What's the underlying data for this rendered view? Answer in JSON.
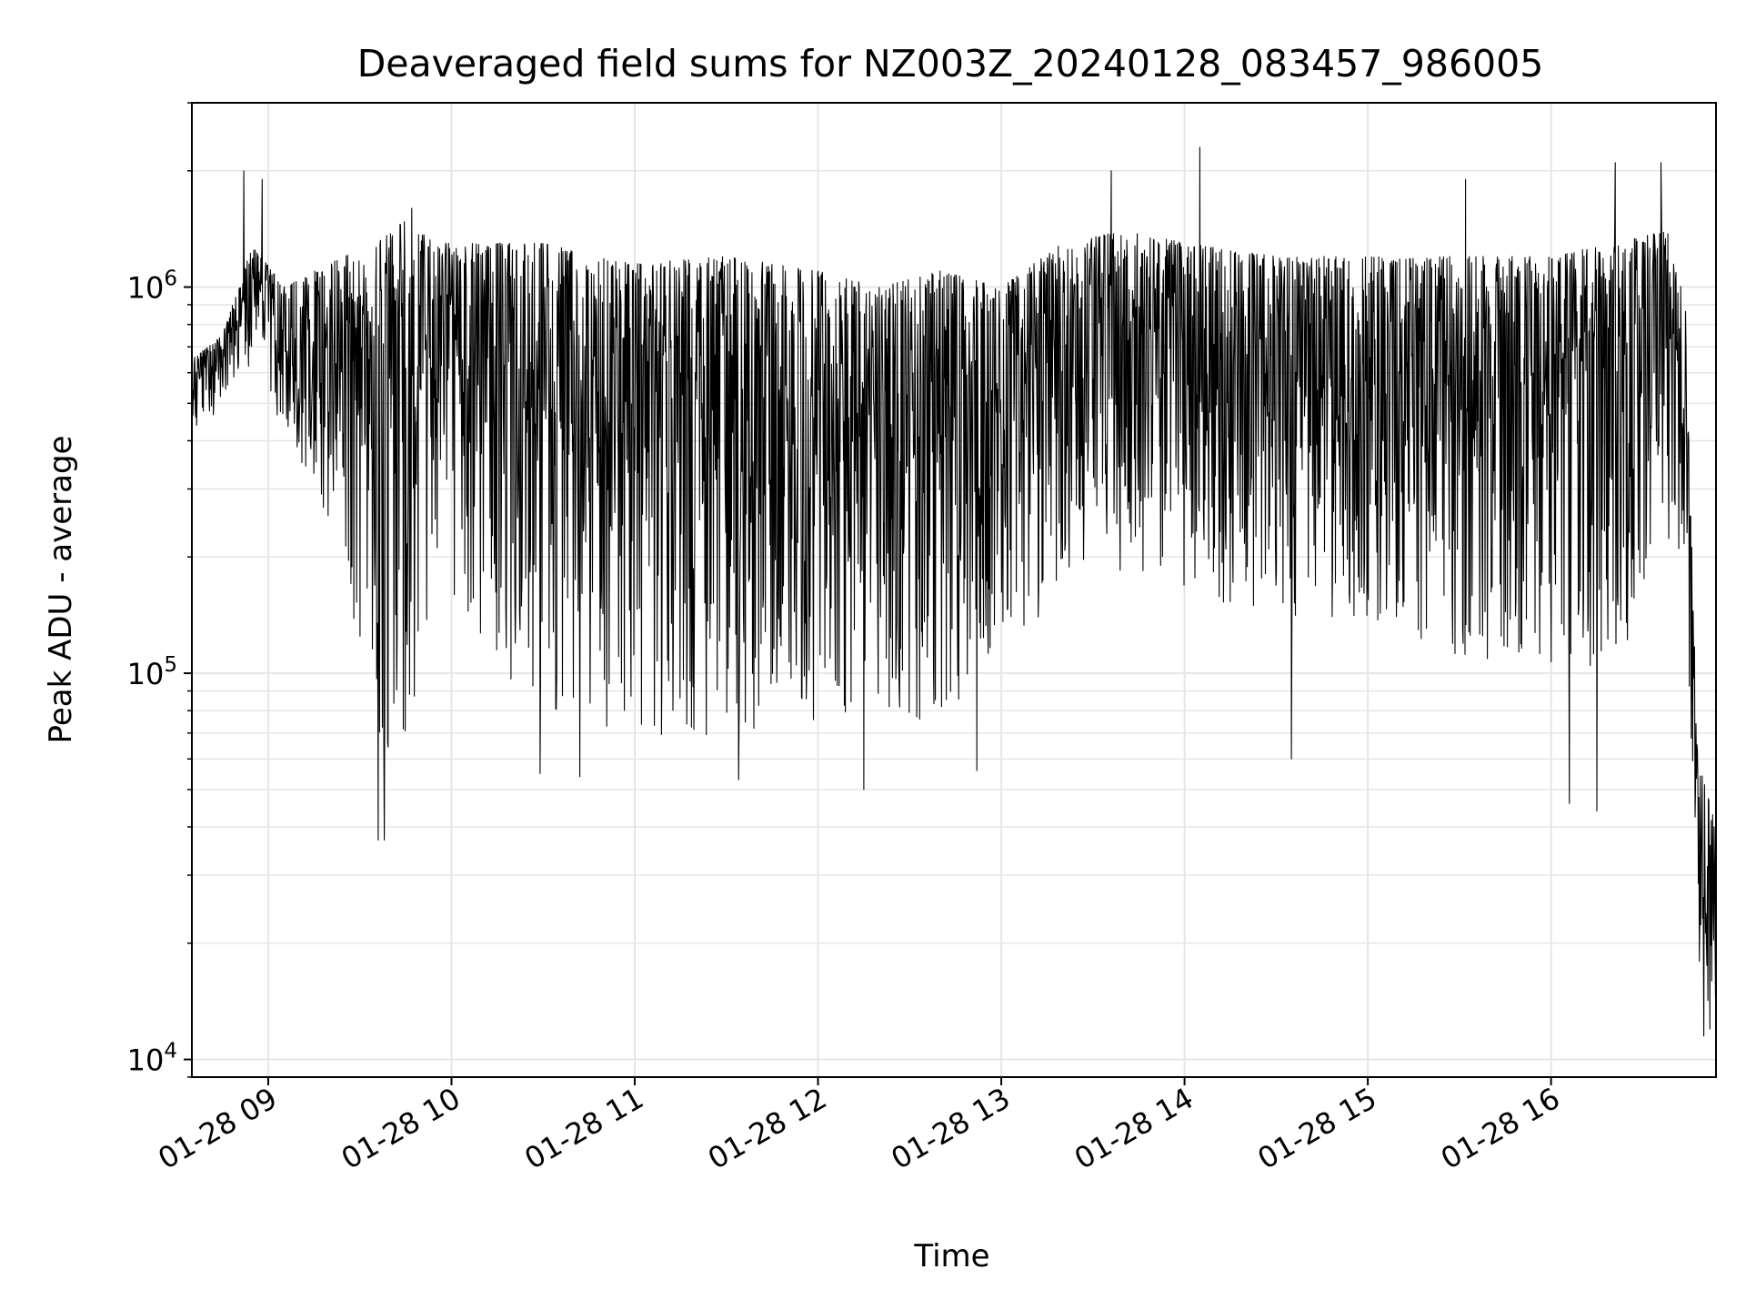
{
  "chart_data": {
    "type": "line",
    "title": "Deaveraged field sums for NZ003Z_20240128_083457_986005",
    "xlabel": "Time",
    "ylabel": "Peak ADU - average",
    "yscale": "log",
    "ylim": [
      9000,
      3000000
    ],
    "xlim": [
      "2024-01-28 08:35",
      "2024-01-28 16:54"
    ],
    "grid": true,
    "line_color": "#000000",
    "x_ticks": [
      {
        "t": "2024-01-28 09:00",
        "label": "01-28 09"
      },
      {
        "t": "2024-01-28 10:00",
        "label": "01-28 10"
      },
      {
        "t": "2024-01-28 11:00",
        "label": "01-28 11"
      },
      {
        "t": "2024-01-28 12:00",
        "label": "01-28 12"
      },
      {
        "t": "2024-01-28 13:00",
        "label": "01-28 13"
      },
      {
        "t": "2024-01-28 14:00",
        "label": "01-28 14"
      },
      {
        "t": "2024-01-28 15:00",
        "label": "01-28 15"
      },
      {
        "t": "2024-01-28 16:00",
        "label": "01-28 16"
      }
    ],
    "y_ticks": [
      {
        "value": 10000,
        "base": "10",
        "exp": "4"
      },
      {
        "value": 100000,
        "base": "10",
        "exp": "5"
      },
      {
        "value": 1000000,
        "base": "10",
        "exp": "6"
      }
    ],
    "envelope": {
      "x": [
        "2024-01-28 08:35",
        "2024-01-28 08:45",
        "2024-01-28 08:55",
        "2024-01-28 09:05",
        "2024-01-28 09:15",
        "2024-01-28 09:25",
        "2024-01-28 09:35",
        "2024-01-28 09:45",
        "2024-01-28 09:55",
        "2024-01-28 10:15",
        "2024-01-28 10:30",
        "2024-01-28 11:00",
        "2024-01-28 11:30",
        "2024-01-28 12:00",
        "2024-01-28 12:20",
        "2024-01-28 12:40",
        "2024-01-28 13:00",
        "2024-01-28 13:20",
        "2024-01-28 13:40",
        "2024-01-28 14:00",
        "2024-01-28 14:30",
        "2024-01-28 15:00",
        "2024-01-28 15:30",
        "2024-01-28 16:00",
        "2024-01-28 16:20",
        "2024-01-28 16:38",
        "2024-01-28 16:44",
        "2024-01-28 16:48",
        "2024-01-28 16:54"
      ],
      "high": [
        650000,
        750000,
        1300000,
        1000000,
        1100000,
        1200000,
        1300000,
        1500000,
        1300000,
        1300000,
        1300000,
        1150000,
        1200000,
        1100000,
        1000000,
        1100000,
        1000000,
        1300000,
        1400000,
        1300000,
        1200000,
        1200000,
        1200000,
        1200000,
        1300000,
        1400000,
        900000,
        60000,
        40000
      ],
      "low": [
        430000,
        480000,
        650000,
        400000,
        300000,
        200000,
        50000,
        70000,
        150000,
        90000,
        80000,
        70000,
        65000,
        75000,
        80000,
        70000,
        120000,
        150000,
        180000,
        160000,
        140000,
        140000,
        110000,
        100000,
        100000,
        200000,
        200000,
        15000,
        12000
      ]
    },
    "spikes": [
      {
        "x": "2024-01-28 08:52",
        "y": 2000000
      },
      {
        "x": "2024-01-28 08:58",
        "y": 1900000
      },
      {
        "x": "2024-01-28 09:36",
        "y": 37000
      },
      {
        "x": "2024-01-28 09:38",
        "y": 37000
      },
      {
        "x": "2024-01-28 09:47",
        "y": 1600000
      },
      {
        "x": "2024-01-28 10:29",
        "y": 55000
      },
      {
        "x": "2024-01-28 10:42",
        "y": 54000
      },
      {
        "x": "2024-01-28 11:34",
        "y": 53000
      },
      {
        "x": "2024-01-28 12:15",
        "y": 50000
      },
      {
        "x": "2024-01-28 12:52",
        "y": 56000
      },
      {
        "x": "2024-01-28 13:36",
        "y": 2000000
      },
      {
        "x": "2024-01-28 14:05",
        "y": 2300000
      },
      {
        "x": "2024-01-28 14:35",
        "y": 60000
      },
      {
        "x": "2024-01-28 15:32",
        "y": 1900000
      },
      {
        "x": "2024-01-28 16:06",
        "y": 46000
      },
      {
        "x": "2024-01-28 16:15",
        "y": 44000
      },
      {
        "x": "2024-01-28 16:21",
        "y": 2100000
      },
      {
        "x": "2024-01-28 16:36",
        "y": 2100000
      },
      {
        "x": "2024-01-28 16:50",
        "y": 11500
      },
      {
        "x": "2024-01-28 16:52",
        "y": 12000
      }
    ]
  }
}
